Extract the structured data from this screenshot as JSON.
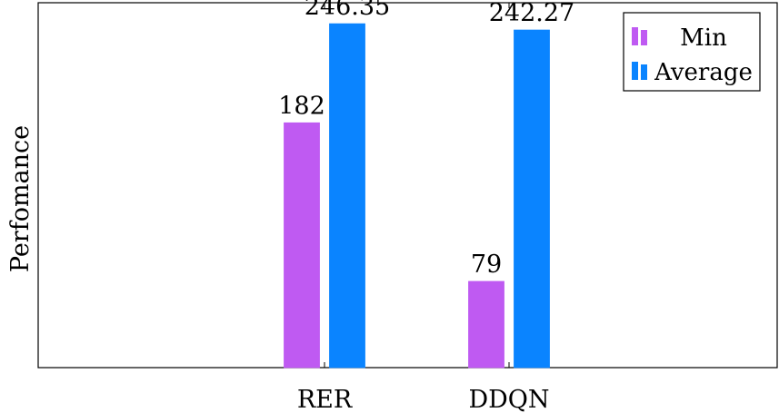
{
  "chart_data": {
    "type": "bar",
    "title": "",
    "xlabel": "",
    "ylabel": "Perfomance",
    "categories": [
      "RER",
      "DDQN"
    ],
    "series": [
      {
        "name": "Min",
        "values": [
          182,
          79
        ],
        "color": "#bf5af2"
      },
      {
        "name": "Average",
        "values": [
          246.35,
          242.27
        ],
        "color": "#0a84ff"
      }
    ],
    "data_labels": [
      [
        "182",
        "79"
      ],
      [
        "246.35",
        "242.27"
      ]
    ],
    "ylim": [
      23,
      260
    ],
    "grid": false,
    "legend_position": "top-right"
  }
}
